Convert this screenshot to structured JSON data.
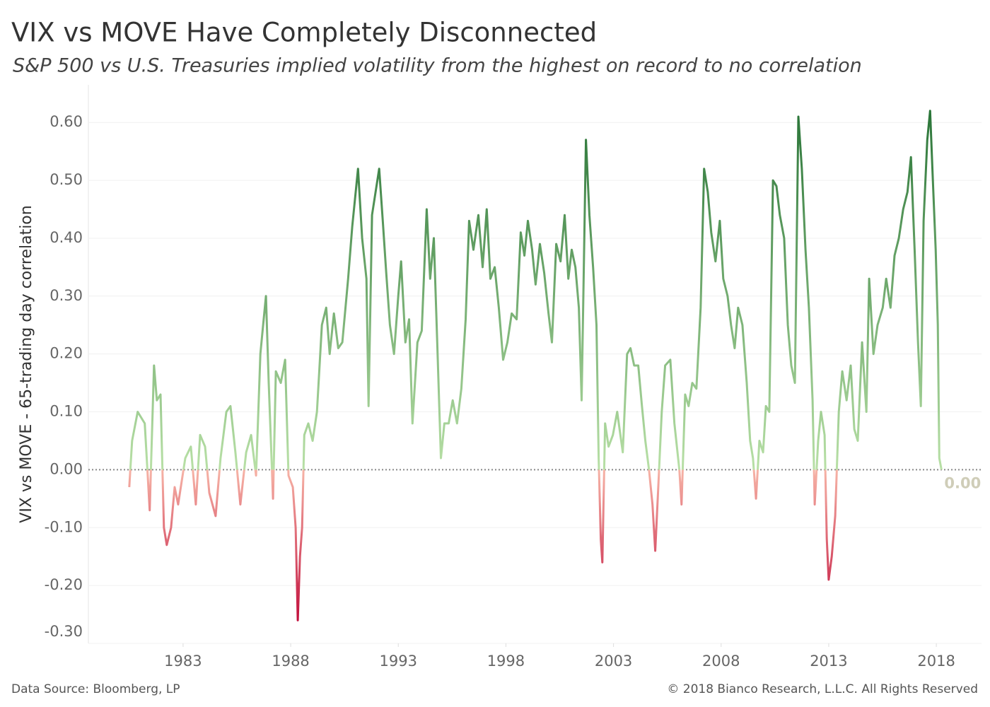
{
  "chart_data": {
    "type": "line",
    "title": "VIX vs MOVE Have Completely Disconnected",
    "subtitle": "S&P 500 vs U.S. Treasuries implied volatility from the highest on record to no correlation",
    "y_label": "VIX vs MOVE - 65-trading day correlation",
    "source": "Data Source: Bloomberg, LP",
    "copyright": "© 2018 Bianco Research, L.L.C. All Rights Reserved",
    "last_value_label": "0.00",
    "colors": {
      "high": "#2a7538",
      "zero_high": "#b8e0a6",
      "zero_low": "#f6b3a6",
      "low": "#c20f3c",
      "last_label": "#cfcdb8"
    },
    "grid": true,
    "zero_line": true,
    "xlim": [
      1978.6,
      2020.1
    ],
    "ylim": [
      -0.3,
      0.665
    ],
    "xticks": [
      1983,
      1988,
      1993,
      1998,
      2003,
      2008,
      2013,
      2018
    ],
    "yticks": [
      {
        "value": -0.3,
        "label": "-0.30"
      },
      {
        "value": -0.2,
        "label": "-0.20"
      },
      {
        "value": -0.1,
        "label": "-0.10"
      },
      {
        "value": 0,
        "label": "0.00"
      },
      {
        "value": 0.1,
        "label": "0.10"
      },
      {
        "value": 0.2,
        "label": "0.20"
      },
      {
        "value": 0.3,
        "label": "0.30"
      },
      {
        "value": 0.4,
        "label": "0.40"
      },
      {
        "value": 0.5,
        "label": "0.50"
      },
      {
        "value": 0.6,
        "label": "0.60"
      }
    ],
    "x": [
      1980.5,
      1980.63,
      1980.89,
      1981.22,
      1981.45,
      1981.65,
      1981.78,
      1981.95,
      1982.11,
      1982.24,
      1982.44,
      1982.61,
      1982.77,
      1983.1,
      1983.36,
      1983.59,
      1983.79,
      1984.02,
      1984.22,
      1984.51,
      1984.74,
      1985.01,
      1985.2,
      1985.43,
      1985.66,
      1985.93,
      1986.16,
      1986.39,
      1986.59,
      1986.72,
      1986.85,
      1986.98,
      1987.18,
      1987.31,
      1987.54,
      1987.74,
      1987.9,
      1988.1,
      1988.23,
      1988.33,
      1988.43,
      1988.53,
      1988.63,
      1988.82,
      1989.02,
      1989.22,
      1989.45,
      1989.65,
      1989.81,
      1990.01,
      1990.21,
      1990.4,
      1990.67,
      1990.86,
      1991.13,
      1991.32,
      1991.52,
      1991.62,
      1991.78,
      1992.11,
      1992.28,
      1992.44,
      1992.61,
      1992.8,
      1993.0,
      1993.13,
      1993.33,
      1993.5,
      1993.66,
      1993.89,
      1994.09,
      1994.32,
      1994.48,
      1994.65,
      1994.81,
      1994.98,
      1995.14,
      1995.34,
      1995.53,
      1995.73,
      1995.93,
      1996.13,
      1996.29,
      1996.49,
      1996.72,
      1996.92,
      1997.11,
      1997.28,
      1997.48,
      1997.67,
      1997.87,
      1998.07,
      1998.27,
      1998.5,
      1998.69,
      1998.86,
      1999.02,
      1999.22,
      1999.38,
      1999.58,
      1999.78,
      1999.98,
      2000.14,
      2000.34,
      2000.54,
      2000.73,
      2000.9,
      2001.06,
      2001.23,
      2001.39,
      2001.52,
      2001.72,
      2001.88,
      2002.05,
      2002.21,
      2002.31,
      2002.41,
      2002.48,
      2002.61,
      2002.77,
      2002.97,
      2003.17,
      2003.43,
      2003.63,
      2003.79,
      2003.96,
      2004.15,
      2004.32,
      2004.48,
      2004.65,
      2004.81,
      2004.94,
      2005.08,
      2005.24,
      2005.4,
      2005.64,
      2005.83,
      2006.06,
      2006.16,
      2006.33,
      2006.49,
      2006.66,
      2006.85,
      2007.05,
      2007.21,
      2007.38,
      2007.54,
      2007.74,
      2007.94,
      2008.1,
      2008.3,
      2008.46,
      2008.63,
      2008.79,
      2008.99,
      2009.19,
      2009.35,
      2009.48,
      2009.62,
      2009.78,
      2009.95,
      2010.08,
      2010.24,
      2010.41,
      2010.57,
      2010.73,
      2010.93,
      2011.1,
      2011.26,
      2011.43,
      2011.59,
      2011.75,
      2011.92,
      2012.08,
      2012.25,
      2012.35,
      2012.51,
      2012.64,
      2012.81,
      2012.91,
      2013.0,
      2013.14,
      2013.3,
      2013.47,
      2013.63,
      2013.83,
      2014.02,
      2014.19,
      2014.35,
      2014.55,
      2014.75,
      2014.88,
      2015.08,
      2015.27,
      2015.51,
      2015.67,
      2015.87,
      2016.06,
      2016.26,
      2016.46,
      2016.66,
      2016.82,
      2016.99,
      2017.15,
      2017.28,
      2017.41,
      2017.58,
      2017.71,
      2017.84,
      2017.97,
      2018.07,
      2018.14,
      2018.24
    ],
    "values": [
      -0.03,
      0.05,
      0.1,
      0.08,
      -0.07,
      0.18,
      0.12,
      0.13,
      -0.1,
      -0.13,
      -0.1,
      -0.03,
      -0.06,
      0.02,
      0.04,
      -0.06,
      0.06,
      0.04,
      -0.04,
      -0.08,
      0.02,
      0.1,
      0.11,
      0.03,
      -0.06,
      0.03,
      0.06,
      -0.01,
      0.2,
      0.25,
      0.3,
      0.15,
      -0.05,
      0.17,
      0.15,
      0.19,
      -0.01,
      -0.03,
      -0.1,
      -0.26,
      -0.15,
      -0.1,
      0.06,
      0.08,
      0.05,
      0.1,
      0.25,
      0.28,
      0.2,
      0.27,
      0.21,
      0.22,
      0.33,
      0.42,
      0.52,
      0.4,
      0.33,
      0.11,
      0.44,
      0.52,
      0.43,
      0.34,
      0.25,
      0.2,
      0.3,
      0.36,
      0.22,
      0.26,
      0.08,
      0.22,
      0.24,
      0.45,
      0.33,
      0.4,
      0.22,
      0.02,
      0.08,
      0.08,
      0.12,
      0.08,
      0.14,
      0.26,
      0.43,
      0.38,
      0.44,
      0.35,
      0.45,
      0.33,
      0.35,
      0.28,
      0.19,
      0.22,
      0.27,
      0.26,
      0.41,
      0.37,
      0.43,
      0.38,
      0.32,
      0.39,
      0.34,
      0.27,
      0.22,
      0.39,
      0.36,
      0.44,
      0.33,
      0.38,
      0.35,
      0.28,
      0.12,
      0.57,
      0.44,
      0.35,
      0.25,
      0.02,
      -0.12,
      -0.16,
      0.08,
      0.04,
      0.06,
      0.1,
      0.03,
      0.2,
      0.21,
      0.18,
      0.18,
      0.11,
      0.05,
      0.0,
      -0.06,
      -0.14,
      -0.03,
      0.1,
      0.18,
      0.19,
      0.08,
      0.0,
      -0.06,
      0.13,
      0.11,
      0.15,
      0.14,
      0.28,
      0.52,
      0.48,
      0.41,
      0.36,
      0.43,
      0.33,
      0.3,
      0.25,
      0.21,
      0.28,
      0.25,
      0.15,
      0.05,
      0.02,
      -0.05,
      0.05,
      0.03,
      0.11,
      0.1,
      0.5,
      0.49,
      0.44,
      0.4,
      0.25,
      0.18,
      0.15,
      0.61,
      0.52,
      0.38,
      0.28,
      0.12,
      -0.06,
      0.05,
      0.1,
      0.06,
      -0.12,
      -0.19,
      -0.15,
      -0.08,
      0.1,
      0.17,
      0.12,
      0.18,
      0.07,
      0.05,
      0.22,
      0.1,
      0.33,
      0.2,
      0.25,
      0.28,
      0.33,
      0.28,
      0.37,
      0.4,
      0.45,
      0.48,
      0.54,
      0.38,
      0.22,
      0.11,
      0.43,
      0.57,
      0.62,
      0.5,
      0.38,
      0.25,
      0.02,
      0.0
    ]
  }
}
